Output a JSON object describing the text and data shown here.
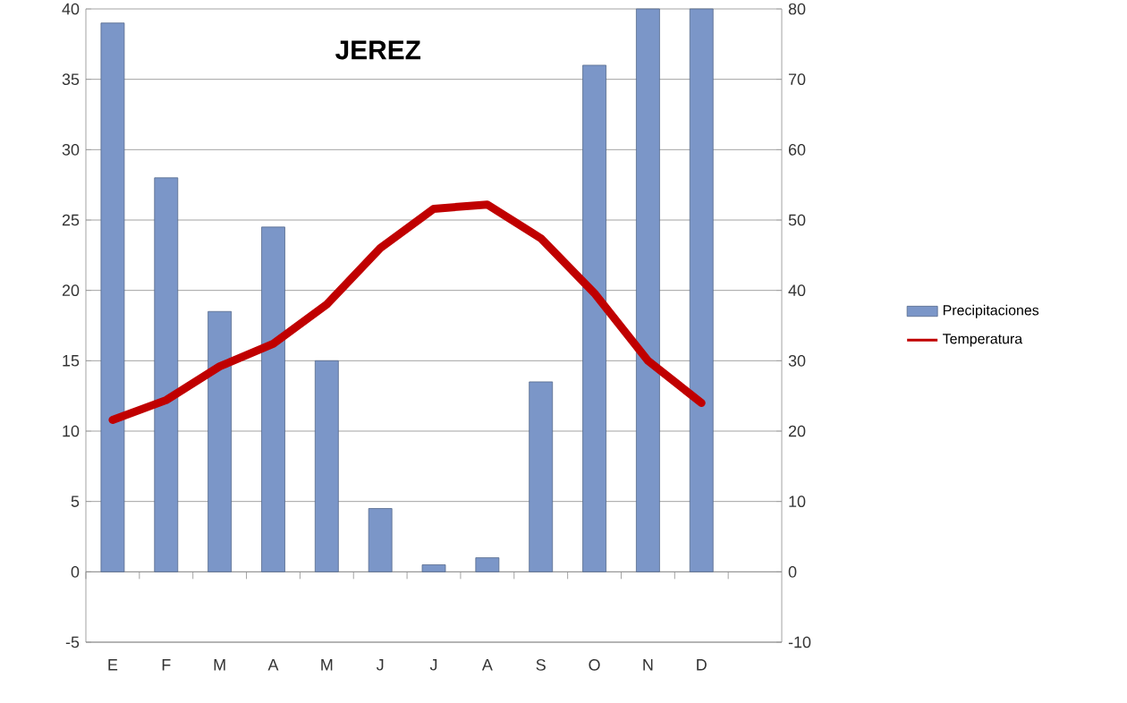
{
  "chart_data": {
    "type": "bar",
    "title": "JEREZ",
    "categories": [
      "E",
      "F",
      "M",
      "A",
      "M",
      "J",
      "J",
      "A",
      "S",
      "O",
      "N",
      "D"
    ],
    "series": [
      {
        "name": "Precipitaciones",
        "axis": "y2",
        "color": "#7b96c8",
        "values": [
          78,
          56,
          37,
          49,
          30,
          9,
          1,
          2,
          27,
          72,
          80,
          80
        ]
      },
      {
        "name": "Temperatura",
        "type": "line",
        "color": "#c00000",
        "values": [
          10.8,
          12.2,
          14.6,
          16.2,
          19,
          23,
          25.8,
          26.1,
          23.7,
          19.8,
          15,
          12
        ]
      }
    ],
    "ylim": [
      -5,
      40
    ],
    "yticks": [
      -5,
      0,
      5,
      10,
      15,
      20,
      25,
      30,
      35,
      40
    ],
    "y2lim": [
      -10,
      80
    ],
    "y2ticks": [
      -10,
      0,
      10,
      20,
      30,
      40,
      50,
      60,
      70,
      80
    ],
    "grid": "y",
    "legend": "right",
    "marker": "none"
  }
}
